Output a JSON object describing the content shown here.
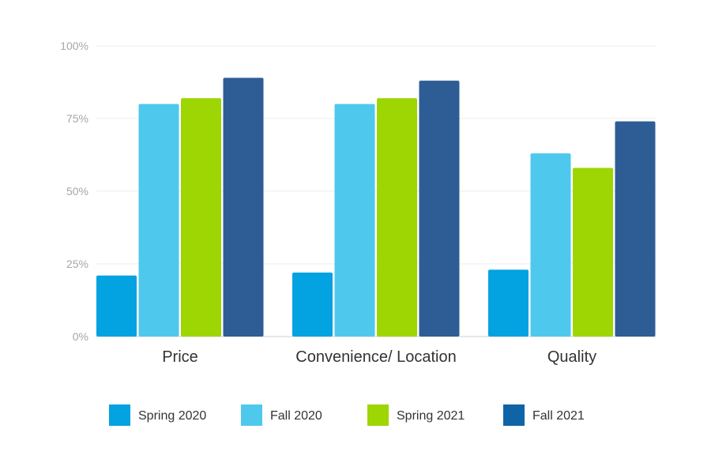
{
  "chart_data": {
    "type": "bar",
    "title": "",
    "xlabel": "",
    "ylabel": "",
    "categories": [
      "Price",
      "Convenience/ Location",
      "Quality"
    ],
    "ylim": [
      0,
      100
    ],
    "yticks": [
      0,
      25,
      50,
      75,
      100
    ],
    "ytick_labels": [
      "0%",
      "25%",
      "50%",
      "75%",
      "100%"
    ],
    "grid": true,
    "legend_position": "bottom",
    "series": [
      {
        "name": "Spring 2020",
        "color": "#03a2e0",
        "values": [
          21,
          22,
          23
        ]
      },
      {
        "name": "Fall 2020",
        "color": "#4fc8ee",
        "values": [
          80,
          80,
          63
        ]
      },
      {
        "name": "Spring 2021",
        "color": "#9dd602",
        "values": [
          82,
          82,
          58
        ]
      },
      {
        "name": "Fall 2021",
        "color": "#2e5d95",
        "values": [
          89,
          88,
          74
        ]
      }
    ],
    "legend_colors": [
      "#03a2e0",
      "#4fc8ee",
      "#9dd602",
      "#0f64a6"
    ]
  }
}
